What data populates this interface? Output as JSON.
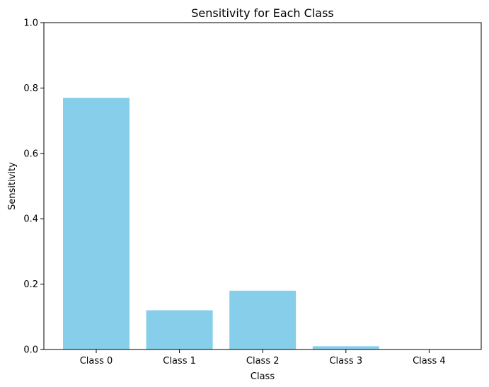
{
  "chart_data": {
    "type": "bar",
    "title": "Sensitivity for Each Class",
    "xlabel": "Class",
    "ylabel": "Sensitivity",
    "categories": [
      "Class 0",
      "Class 1",
      "Class 2",
      "Class 3",
      "Class 4"
    ],
    "values": [
      0.77,
      0.12,
      0.18,
      0.01,
      0.0
    ],
    "ylim": [
      0,
      1.0
    ],
    "yticks": [
      0.0,
      0.2,
      0.4,
      0.6,
      0.8,
      1.0
    ],
    "ytick_labels": [
      "0.0",
      "0.2",
      "0.4",
      "0.6",
      "0.8",
      "1.0"
    ],
    "grid": false,
    "bar_color": "#87ceeb"
  }
}
